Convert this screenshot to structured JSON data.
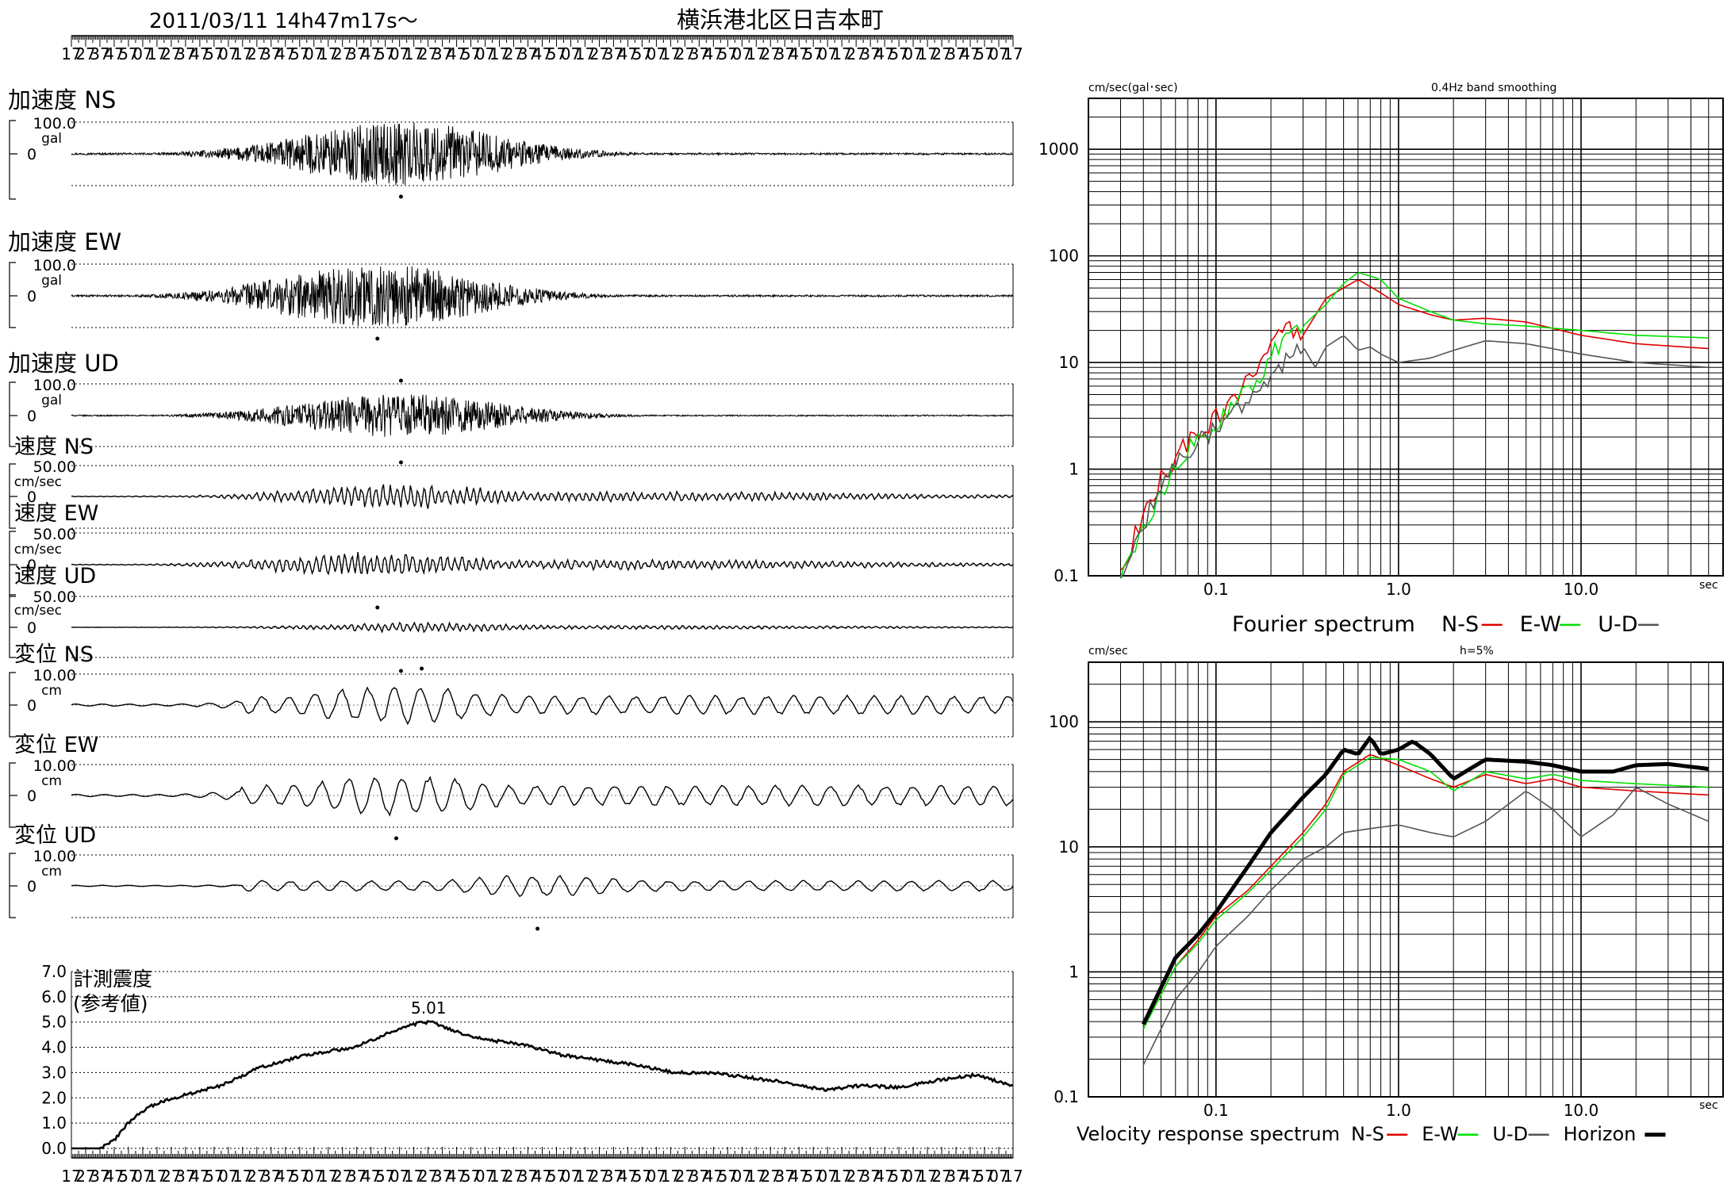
{
  "header": {
    "datetime": "2011/03/11  14h47m17s～",
    "station": "横浜港北区日吉本町"
  },
  "time_ticks": [
    "17",
    "27",
    "37",
    "47",
    "57",
    "07",
    "17",
    "27",
    "37",
    "47",
    "57",
    "07",
    "17",
    "27",
    "37",
    "47",
    "57",
    "07",
    "17",
    "27",
    "37",
    "47",
    "57",
    "07",
    "17",
    "27",
    "37",
    "47",
    "57",
    "07",
    "17",
    "27",
    "37",
    "47",
    "57",
    "07",
    "17",
    "27",
    "37",
    "47",
    "57",
    "07",
    "17",
    "27",
    "37",
    "47",
    "57",
    "07",
    "17",
    "27",
    "37",
    "47",
    "57",
    "07",
    "17",
    "27",
    "37",
    "47",
    "57",
    "07",
    "17",
    "27",
    "37",
    "47",
    "57",
    "07",
    "17"
  ],
  "zero_label": "0",
  "traces": [
    {
      "id": "acc-ns",
      "title": "加速度 NS",
      "max_label": "100.0",
      "unit": "gal",
      "peak_side": "below",
      "peak_pos": 0.35,
      "amp_scale": 0.72,
      "style": "accel"
    },
    {
      "id": "acc-ew",
      "title": "加速度 EW",
      "max_label": "100.0",
      "unit": "gal",
      "peak_side": "below",
      "peak_pos": 0.325,
      "amp_scale": 0.72,
      "style": "accel"
    },
    {
      "id": "acc-ud",
      "title": "加速度 UD",
      "max_label": "100.0",
      "unit": "gal",
      "peak_side": "above",
      "peak_pos": 0.35,
      "amp_scale": 0.5,
      "style": "accel"
    },
    {
      "id": "vel-ns",
      "title": "速度 NS",
      "max_label": "50.00",
      "unit": "cm/sec",
      "peak_side": "above",
      "peak_pos": 0.35,
      "amp_scale": 0.3,
      "style": "vel"
    },
    {
      "id": "vel-ew",
      "title": "速度 EW",
      "max_label": "50.00",
      "unit": "cm/sec",
      "peak_side": "below",
      "peak_pos": 0.325,
      "amp_scale": 0.3,
      "style": "vel"
    },
    {
      "id": "vel-ud",
      "title": "速度 UD",
      "max_label": "50.00",
      "unit": "cm/sec",
      "peak_side": "below",
      "peak_pos": 0.372,
      "amp_scale": 0.12,
      "style": "vel"
    },
    {
      "id": "dis-ns",
      "title": "変位 NS",
      "max_label": "10.00",
      "unit": "cm",
      "peak_side": "above",
      "peak_pos": 0.35,
      "amp_scale": 0.5,
      "style": "disp"
    },
    {
      "id": "dis-ew",
      "title": "変位 EW",
      "max_label": "10.00",
      "unit": "cm",
      "peak_side": "below",
      "peak_pos": 0.345,
      "amp_scale": 0.55,
      "style": "disp"
    },
    {
      "id": "dis-ud",
      "title": "変位 UD",
      "max_label": "10.00",
      "unit": "cm",
      "peak_side": "below",
      "peak_pos": 0.495,
      "amp_scale": 0.28,
      "style": "disp"
    }
  ],
  "intensity": {
    "title_line1": "計測震度",
    "title_line2": "(参考値)",
    "peak_label": "5.01",
    "y_ticks": [
      "7.0",
      "6.0",
      "5.0",
      "4.0",
      "3.0",
      "2.0",
      "1.0",
      "0.0"
    ],
    "chart_data": {
      "type": "line",
      "ylim": [
        0,
        7
      ],
      "x_fraction": [
        0,
        0.03,
        0.045,
        0.06,
        0.08,
        0.1,
        0.13,
        0.16,
        0.2,
        0.25,
        0.3,
        0.34,
        0.36,
        0.38,
        0.41,
        0.44,
        0.48,
        0.52,
        0.56,
        0.6,
        0.64,
        0.68,
        0.72,
        0.76,
        0.8,
        0.84,
        0.88,
        0.92,
        0.96,
        1.0
      ],
      "values": [
        0,
        0,
        0.3,
        1.0,
        1.6,
        1.9,
        2.2,
        2.5,
        3.2,
        3.7,
        4.0,
        4.6,
        4.9,
        5.01,
        4.6,
        4.3,
        4.1,
        3.7,
        3.5,
        3.3,
        3.0,
        3.0,
        2.8,
        2.6,
        2.3,
        2.5,
        2.4,
        2.7,
        2.9,
        2.5
      ]
    }
  },
  "fourier": {
    "header_left": "cm/sec(gal･sec)",
    "header_center": "0.4Hz band smoothing",
    "x_unit": "sec",
    "x_ticks": [
      "0.1",
      "1.0",
      "10.0"
    ],
    "y_ticks": [
      "0.1",
      "1",
      "10",
      "100",
      "1000"
    ],
    "legend_title": "Fourier spectrum",
    "legend": [
      {
        "name": "N-S",
        "color": "#e00000"
      },
      {
        "name": "E-W",
        "color": "#00e000"
      },
      {
        "name": "U-D",
        "color": "#555555"
      }
    ],
    "chart_data": {
      "type": "line",
      "x_scale": "log",
      "y_scale": "log",
      "xlim": [
        0.02,
        60
      ],
      "ylim": [
        0.1,
        3000
      ],
      "series": [
        {
          "name": "N-S",
          "color": "#e00000",
          "x": [
            0.03,
            0.04,
            0.05,
            0.07,
            0.1,
            0.13,
            0.17,
            0.2,
            0.25,
            0.3,
            0.4,
            0.5,
            0.6,
            0.8,
            1.0,
            1.5,
            2.0,
            3.0,
            5.0,
            10.0,
            20.0,
            50.0
          ],
          "y": [
            0.12,
            0.35,
            0.8,
            1.8,
            3.0,
            5.0,
            8.0,
            18.0,
            20.0,
            18.0,
            40.0,
            50.0,
            60.0,
            45.0,
            35.0,
            28.0,
            25.0,
            26.0,
            24.0,
            18.0,
            15.0,
            13.5
          ]
        },
        {
          "name": "E-W",
          "color": "#00e000",
          "x": [
            0.03,
            0.04,
            0.05,
            0.07,
            0.1,
            0.13,
            0.17,
            0.2,
            0.25,
            0.3,
            0.4,
            0.5,
            0.6,
            0.8,
            1.0,
            1.5,
            2.0,
            3.0,
            5.0,
            10.0,
            20.0,
            50.0
          ],
          "y": [
            0.1,
            0.25,
            0.6,
            1.5,
            2.6,
            4.5,
            7.0,
            12.0,
            17.0,
            22.0,
            35.0,
            55.0,
            70.0,
            60.0,
            40.0,
            30.0,
            25.0,
            23.0,
            22.0,
            20.0,
            18.0,
            17.0
          ]
        },
        {
          "name": "U-D",
          "color": "#555555",
          "x": [
            0.03,
            0.04,
            0.05,
            0.07,
            0.1,
            0.13,
            0.17,
            0.2,
            0.25,
            0.3,
            0.35,
            0.4,
            0.5,
            0.6,
            0.7,
            0.8,
            1.0,
            1.5,
            2.0,
            3.0,
            5.0,
            10.0,
            20.0,
            50.0
          ],
          "y": [
            0.1,
            0.3,
            0.7,
            1.5,
            2.4,
            3.5,
            5.5,
            8.0,
            11.0,
            14.0,
            9.0,
            14.0,
            18.0,
            13.0,
            14.0,
            12.0,
            10.0,
            11.0,
            13.0,
            16.0,
            15.0,
            12.0,
            10.0,
            9.0
          ]
        }
      ]
    }
  },
  "response": {
    "header_left": "cm/sec",
    "header_center": "h=5%",
    "x_unit": "sec",
    "x_ticks": [
      "0.1",
      "1.0",
      "10.0"
    ],
    "y_ticks": [
      "0.1",
      "1",
      "10",
      "100"
    ],
    "legend_title": "Velocity response spectrum",
    "legend": [
      {
        "name": "N-S",
        "color": "#e00000"
      },
      {
        "name": "E-W",
        "color": "#00e000"
      },
      {
        "name": "U-D",
        "color": "#555555"
      },
      {
        "name": "Horizon",
        "color": "#000000"
      }
    ],
    "chart_data": {
      "type": "line",
      "x_scale": "log",
      "y_scale": "log",
      "xlim": [
        0.02,
        60
      ],
      "ylim": [
        0.1,
        300
      ],
      "series": [
        {
          "name": "N-S",
          "color": "#e00000",
          "x": [
            0.04,
            0.06,
            0.08,
            0.1,
            0.15,
            0.2,
            0.3,
            0.4,
            0.5,
            0.7,
            1.0,
            1.5,
            2.0,
            3.0,
            5.0,
            7.0,
            10.0,
            20.0,
            50.0
          ],
          "y": [
            0.35,
            1.1,
            1.8,
            2.8,
            4.5,
            7.0,
            13.0,
            22.0,
            40.0,
            55.0,
            45.0,
            35.0,
            30.0,
            38.0,
            32.0,
            35.0,
            30.0,
            28.0,
            26.0
          ]
        },
        {
          "name": "E-W",
          "color": "#00e000",
          "x": [
            0.04,
            0.06,
            0.08,
            0.1,
            0.15,
            0.2,
            0.3,
            0.4,
            0.5,
            0.7,
            1.0,
            1.5,
            2.0,
            3.0,
            5.0,
            7.0,
            10.0,
            20.0,
            50.0
          ],
          "y": [
            0.35,
            1.1,
            1.7,
            2.6,
            4.3,
            6.5,
            12.0,
            20.0,
            38.0,
            52.0,
            50.0,
            40.0,
            28.0,
            40.0,
            35.0,
            38.0,
            34.0,
            32.0,
            30.0
          ]
        },
        {
          "name": "U-D",
          "color": "#555555",
          "x": [
            0.04,
            0.06,
            0.08,
            0.1,
            0.15,
            0.2,
            0.3,
            0.4,
            0.5,
            0.7,
            1.0,
            1.5,
            2.0,
            3.0,
            5.0,
            7.0,
            10.0,
            15.0,
            20.0,
            30.0,
            50.0
          ],
          "y": [
            0.18,
            0.6,
            1.0,
            1.6,
            2.8,
            4.5,
            8.0,
            10.0,
            13.0,
            14.0,
            15.0,
            13.0,
            12.0,
            16.0,
            28.0,
            20.0,
            12.0,
            18.0,
            30.0,
            22.0,
            16.0
          ]
        },
        {
          "name": "Horizon",
          "color": "#000000",
          "x": [
            0.04,
            0.06,
            0.08,
            0.1,
            0.15,
            0.2,
            0.3,
            0.4,
            0.5,
            0.6,
            0.7,
            0.8,
            1.0,
            1.2,
            1.5,
            2.0,
            3.0,
            5.0,
            7.0,
            10.0,
            15.0,
            20.0,
            30.0,
            50.0
          ],
          "y": [
            0.38,
            1.3,
            2.0,
            3.0,
            7.0,
            13.0,
            25.0,
            38.0,
            60.0,
            55.0,
            75.0,
            55.0,
            60.0,
            70.0,
            55.0,
            35.0,
            50.0,
            48.0,
            45.0,
            40.0,
            40.0,
            45.0,
            46.0,
            42.0
          ]
        }
      ]
    }
  }
}
